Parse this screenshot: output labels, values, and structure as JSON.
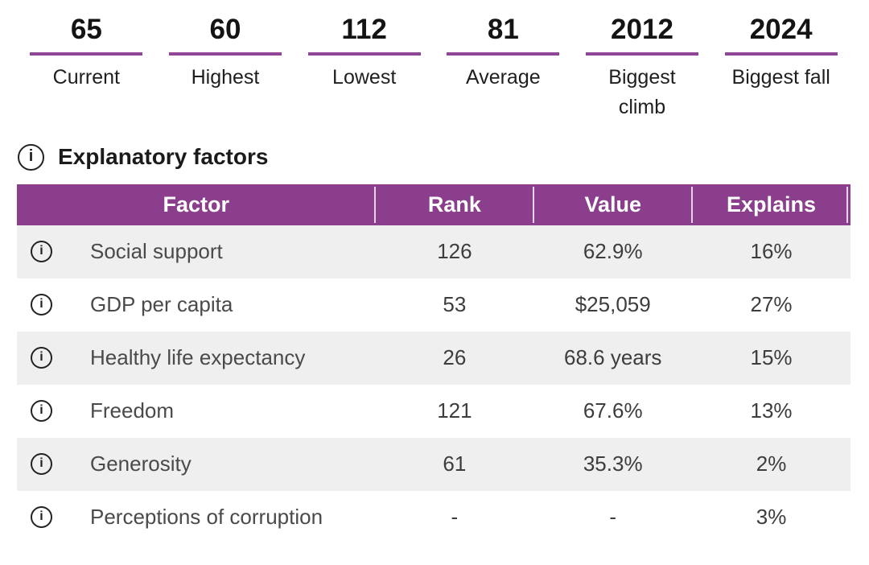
{
  "stats": [
    {
      "value": "65",
      "label": "Current"
    },
    {
      "value": "60",
      "label": "Highest"
    },
    {
      "value": "112",
      "label": "Lowest"
    },
    {
      "value": "81",
      "label": "Average"
    },
    {
      "value": "2012",
      "label": "Biggest climb"
    },
    {
      "value": "2024",
      "label": "Biggest fall"
    }
  ],
  "section": {
    "title": "Explanatory factors"
  },
  "table": {
    "headers": [
      "Factor",
      "Rank",
      "Value",
      "Explains"
    ],
    "rows": [
      {
        "factor": "Social support",
        "rank": "126",
        "value": "62.9%",
        "explains": "16%"
      },
      {
        "factor": "GDP per capita",
        "rank": "53",
        "value": "$25,059",
        "explains": "27%"
      },
      {
        "factor": "Healthy life expectancy",
        "rank": "26",
        "value": "68.6 years",
        "explains": "15%"
      },
      {
        "factor": "Freedom",
        "rank": "121",
        "value": "67.6%",
        "explains": "13%"
      },
      {
        "factor": "Generosity",
        "rank": "61",
        "value": "35.3%",
        "explains": "2%"
      },
      {
        "factor": "Perceptions of corruption",
        "rank": "-",
        "value": "-",
        "explains": "3%"
      }
    ]
  },
  "icons": {
    "info": "i"
  },
  "colors": {
    "accent_purple": "#8a3e8c",
    "underline_purple": "#8f4697",
    "row_alt_background": "#efefef",
    "header_text": "#ffffff"
  }
}
